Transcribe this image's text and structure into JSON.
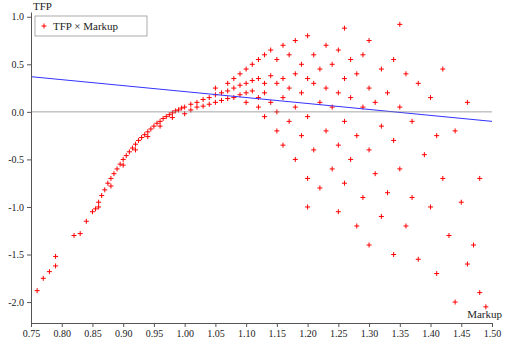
{
  "chart_data": {
    "type": "scatter",
    "x_label": "Markup",
    "y_label": "TFP",
    "legend": "top-left",
    "grid": false,
    "xlim": [
      0.75,
      1.5
    ],
    "ylim": [
      -2.22,
      1.05
    ],
    "xticks": [
      0.75,
      {
        "value": 0.8,
        "label": "0.80"
      },
      0.85,
      {
        "value": 0.9,
        "label": "0.90"
      },
      0.95,
      {
        "value": 1.0,
        "label": "1.00"
      },
      1.05,
      {
        "value": 1.1,
        "label": "1.10"
      },
      1.15,
      {
        "value": 1.2,
        "label": "1.20"
      },
      1.25,
      {
        "value": 1.3,
        "label": "1.30"
      },
      1.35,
      {
        "value": 1.4,
        "label": "1.40"
      },
      1.45,
      {
        "value": 1.5,
        "label": "1.50"
      }
    ],
    "yticks": [
      {
        "value": 1.0,
        "label": "1.0"
      },
      0.5,
      {
        "value": 0.0,
        "label": "0.0"
      },
      -0.5,
      {
        "value": -1.0,
        "label": "-1.0"
      },
      -1.5,
      {
        "value": -2.0,
        "label": "-2.0"
      }
    ],
    "series": [
      {
        "name": "TFP × Markup",
        "type": "scatter",
        "marker": "plus",
        "color": "#ff0000",
        "x": [
          0.76,
          0.77,
          0.78,
          0.79,
          0.83,
          0.84,
          0.85,
          0.855,
          0.86,
          0.865,
          0.87,
          0.875,
          0.88,
          0.885,
          0.89,
          0.895,
          0.9,
          0.905,
          0.91,
          0.915,
          0.92,
          0.925,
          0.93,
          0.935,
          0.94,
          0.945,
          0.95,
          0.955,
          0.96,
          0.965,
          0.97,
          0.975,
          0.98,
          0.985,
          0.99,
          0.995,
          1.0,
          0.9,
          0.92,
          0.94,
          0.96,
          0.98,
          1.0,
          0.88,
          0.86,
          0.82,
          0.79,
          1.01,
          1.01,
          1.02,
          1.02,
          1.03,
          1.03,
          1.04,
          1.04,
          1.05,
          1.05,
          1.05,
          1.06,
          1.06,
          1.07,
          1.07,
          1.07,
          1.08,
          1.08,
          1.08,
          1.09,
          1.09,
          1.09,
          1.1,
          1.1,
          1.1,
          1.1,
          1.11,
          1.11,
          1.11,
          1.12,
          1.12,
          1.12,
          1.12,
          1.13,
          1.13,
          1.13,
          1.13,
          1.14,
          1.14,
          1.14,
          1.15,
          1.15,
          1.15,
          1.15,
          1.16,
          1.16,
          1.16,
          1.16,
          1.17,
          1.17,
          1.17,
          1.18,
          1.18,
          1.18,
          1.18,
          1.19,
          1.19,
          1.19,
          1.2,
          1.2,
          1.2,
          1.2,
          1.2,
          1.21,
          1.21,
          1.21,
          1.22,
          1.22,
          1.22,
          1.23,
          1.23,
          1.23,
          1.24,
          1.24,
          1.24,
          1.25,
          1.25,
          1.25,
          1.25,
          1.26,
          1.26,
          1.26,
          1.27,
          1.27,
          1.27,
          1.28,
          1.28,
          1.28,
          1.29,
          1.29,
          1.29,
          1.3,
          1.3,
          1.3,
          1.3,
          1.31,
          1.31,
          1.32,
          1.32,
          1.32,
          1.33,
          1.33,
          1.34,
          1.34,
          1.34,
          1.35,
          1.35,
          1.36,
          1.36,
          1.37,
          1.37,
          1.38,
          1.38,
          1.39,
          1.4,
          1.4,
          1.41,
          1.41,
          1.42,
          1.42,
          1.43,
          1.44,
          1.44,
          1.45,
          1.46,
          1.46,
          1.47,
          1.48,
          1.48,
          1.49,
          1.35,
          1.26
        ],
        "values": [
          -1.88,
          -1.75,
          -1.68,
          -1.62,
          -1.28,
          -1.15,
          -1.05,
          -1.02,
          -0.95,
          -0.88,
          -0.82,
          -0.75,
          -0.7,
          -0.65,
          -0.6,
          -0.55,
          -0.5,
          -0.46,
          -0.42,
          -0.38,
          -0.34,
          -0.3,
          -0.27,
          -0.24,
          -0.21,
          -0.18,
          -0.15,
          -0.12,
          -0.1,
          -0.07,
          -0.05,
          -0.03,
          -0.01,
          0.01,
          0.02,
          0.04,
          0.05,
          -0.56,
          -0.4,
          -0.26,
          -0.15,
          -0.06,
          -0.02,
          -0.78,
          -1.0,
          -1.3,
          -1.52,
          0.08,
          0.02,
          0.1,
          0.05,
          0.13,
          0.06,
          0.15,
          0.08,
          0.18,
          0.1,
          0.25,
          0.2,
          0.12,
          0.22,
          0.3,
          0.14,
          0.25,
          0.35,
          0.15,
          0.28,
          0.4,
          0.18,
          0.3,
          0.45,
          0.2,
          0.1,
          0.33,
          0.5,
          0.22,
          0.35,
          0.55,
          0.15,
          0.05,
          0.3,
          0.6,
          0.2,
          -0.05,
          0.38,
          0.65,
          0.1,
          0.3,
          0.55,
          0.0,
          -0.2,
          0.35,
          0.7,
          0.15,
          -0.35,
          0.25,
          0.6,
          -0.1,
          0.4,
          0.75,
          0.05,
          -0.5,
          0.2,
          0.5,
          -0.25,
          0.35,
          0.8,
          -0.05,
          -0.7,
          -1.0,
          0.3,
          0.6,
          -0.4,
          0.1,
          0.45,
          -0.8,
          0.25,
          0.7,
          -0.2,
          0.05,
          0.5,
          -0.6,
          0.2,
          0.65,
          -0.35,
          -1.05,
          0.35,
          -0.1,
          -0.75,
          0.15,
          0.55,
          -0.5,
          0.4,
          -0.25,
          -1.2,
          0.05,
          0.6,
          -0.9,
          0.25,
          -0.4,
          -1.4,
          0.75,
          0.1,
          -0.65,
          0.45,
          -0.15,
          -1.1,
          0.2,
          -0.85,
          0.55,
          -0.3,
          -1.5,
          0.05,
          -0.6,
          0.4,
          -1.2,
          -0.1,
          -0.9,
          0.3,
          -1.55,
          -0.45,
          0.15,
          -1.0,
          -0.25,
          -1.7,
          0.45,
          -0.7,
          -1.3,
          -0.2,
          -2.0,
          -0.95,
          -1.6,
          0.1,
          -1.4,
          -0.7,
          -1.9,
          -2.05,
          0.92,
          0.88
        ]
      },
      {
        "type": "line",
        "color": "#3333ff",
        "line_style": "solid",
        "x": [
          0.75,
          1.5
        ],
        "values": [
          0.37,
          -0.1
        ]
      },
      {
        "type": "line",
        "color": "#808080",
        "line_style": "solid",
        "x": [
          0.75,
          1.5
        ],
        "values": [
          0.0,
          0.0
        ]
      }
    ]
  }
}
